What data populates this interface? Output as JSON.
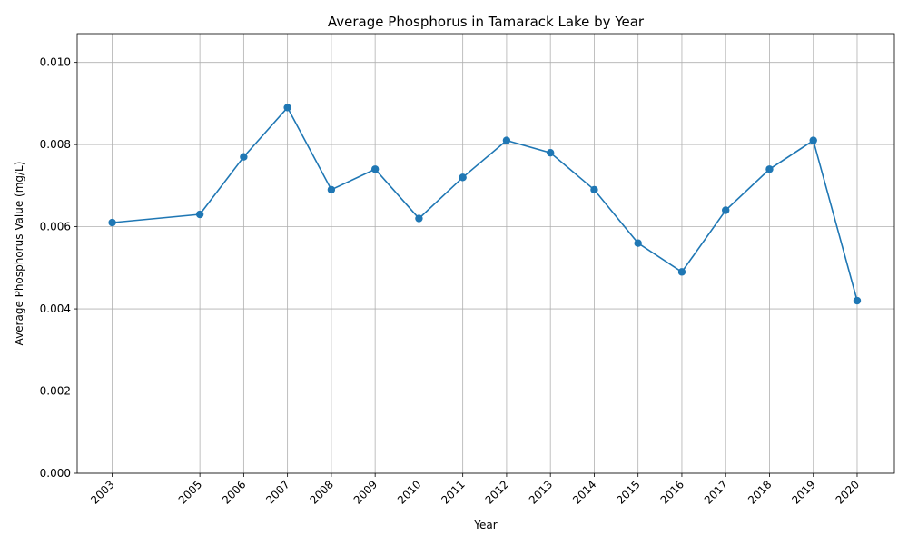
{
  "chart_data": {
    "type": "line",
    "title": "Average Phosphorus in Tamarack Lake by Year",
    "xlabel": "Year",
    "ylabel": "Average Phosphorus Value (mg/L)",
    "x": [
      2003,
      2005,
      2006,
      2007,
      2008,
      2009,
      2010,
      2011,
      2012,
      2013,
      2014,
      2015,
      2016,
      2017,
      2018,
      2019,
      2020
    ],
    "x_tick_labels": [
      "2003",
      "2005",
      "2006",
      "2007",
      "2008",
      "2009",
      "2010",
      "2011",
      "2012",
      "2013",
      "2014",
      "2015",
      "2016",
      "2017",
      "2018",
      "2019",
      "2020"
    ],
    "series": [
      {
        "values": [
          0.0061,
          0.0063,
          0.0077,
          0.0089,
          0.0069,
          0.0074,
          0.0062,
          0.0072,
          0.0081,
          0.0078,
          0.0069,
          0.0056,
          0.0049,
          0.0064,
          0.0074,
          0.0081,
          0.0042
        ]
      }
    ],
    "y_ticks": [
      0.0,
      0.002,
      0.004,
      0.006,
      0.008,
      0.01
    ],
    "y_tick_labels": [
      "0.000",
      "0.002",
      "0.004",
      "0.006",
      "0.008",
      "0.010"
    ],
    "xlim": [
      2002.2,
      2020.85
    ],
    "ylim": [
      0,
      0.0107
    ],
    "grid": true,
    "color": "#1f77b4"
  }
}
